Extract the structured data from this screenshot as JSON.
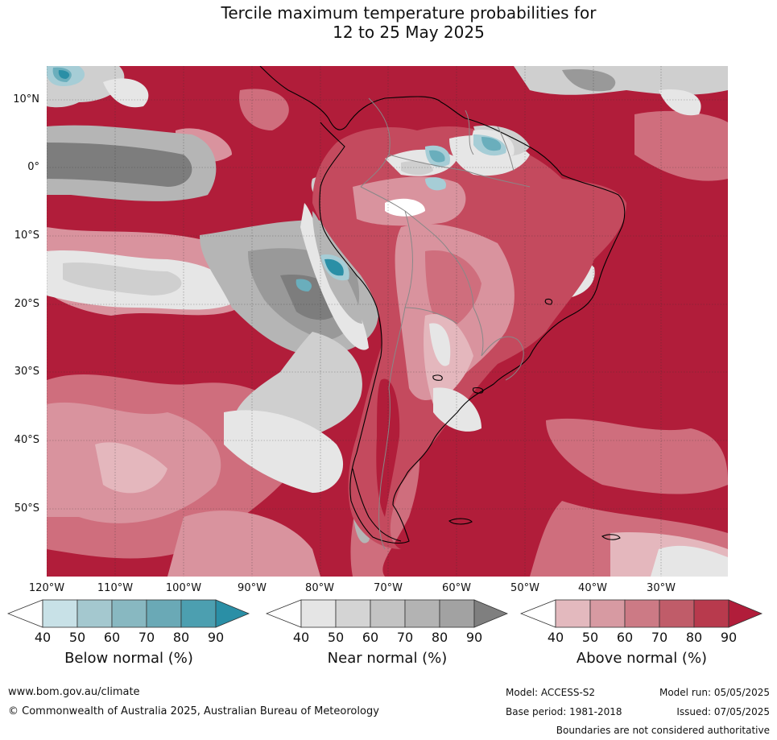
{
  "title": {
    "line1": "Tercile maximum temperature probabilities for",
    "line2": "12 to 25 May 2025"
  },
  "map": {
    "latitude_labels": [
      "10°N",
      "0°",
      "10°S",
      "20°S",
      "30°S",
      "40°S",
      "50°S"
    ],
    "longitude_labels": [
      "120°W",
      "110°W",
      "100°W",
      "90°W",
      "80°W",
      "70°W",
      "60°W",
      "50°W",
      "40°W",
      "30°W"
    ],
    "colors": {
      "above_90": "#b11d3a",
      "above_80": "#c44a5e",
      "above_70": "#cf6e7d",
      "above_60": "#d9939e",
      "above_50": "#e4b7bd",
      "near_50": "#e6e6e6",
      "near_60": "#cfcfcf",
      "near_70": "#b5b5b5",
      "near_80": "#999999",
      "near_90": "#7d7d7d",
      "below_50": "#a6cdd6",
      "below_70": "#6aaebc",
      "below_90": "#2a8fa6",
      "land_outline": "#000000",
      "border_outline": "#888888"
    }
  },
  "colorbars": {
    "below": {
      "title": "Below normal (%)",
      "ticks": [
        "40",
        "50",
        "60",
        "70",
        "80",
        "90"
      ],
      "colors": [
        "#ffffff",
        "#c8e1e7",
        "#a4c8cf",
        "#88b8c1",
        "#6aa9b6",
        "#4c9fb0",
        "#2a8fa6"
      ]
    },
    "near": {
      "title": "Near normal (%)",
      "ticks": [
        "40",
        "50",
        "60",
        "70",
        "80",
        "90"
      ],
      "colors": [
        "#ffffff",
        "#e5e5e5",
        "#d4d4d4",
        "#c3c3c3",
        "#b3b3b3",
        "#a2a2a2",
        "#7f7f7f"
      ]
    },
    "above": {
      "title": "Above normal (%)",
      "ticks": [
        "40",
        "50",
        "60",
        "70",
        "80",
        "90"
      ],
      "colors": [
        "#ffffff",
        "#e3b9be",
        "#d79aa2",
        "#cc7a85",
        "#c05c69",
        "#b83a4d",
        "#b11d3a"
      ]
    }
  },
  "footer": {
    "website": "www.bom.gov.au/climate",
    "copyright": "© Commonwealth of Australia 2025, Australian Bureau of Meteorology",
    "model": "Model: ACCESS-S2",
    "model_run": "Model run: 05/05/2025",
    "base_period": "Base period: 1981-2018",
    "issued": "Issued: 07/05/2025",
    "disclaimer": "Boundaries are not considered authoritative"
  }
}
